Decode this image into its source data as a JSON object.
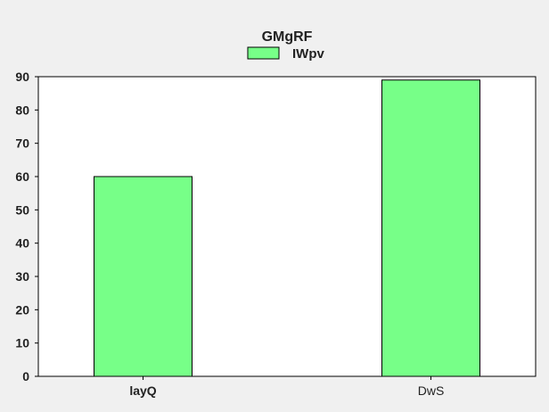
{
  "chart_data": {
    "type": "bar",
    "title": "GMgRF",
    "categories": [
      "layQ",
      "DwS"
    ],
    "series": [
      {
        "name": "IWpv",
        "values": [
          60,
          89
        ],
        "color": "#77ff88"
      }
    ],
    "xlabel": "",
    "ylabel": "",
    "ylim": [
      0,
      90
    ],
    "yticks": [
      0,
      10,
      20,
      30,
      40,
      50,
      60,
      70,
      80,
      90
    ],
    "grid": false,
    "legend_position": "top-center",
    "colors": {
      "figure_background": "#f0f0f0",
      "plot_background": "#ffffff",
      "bar_edge": "#000000"
    }
  }
}
